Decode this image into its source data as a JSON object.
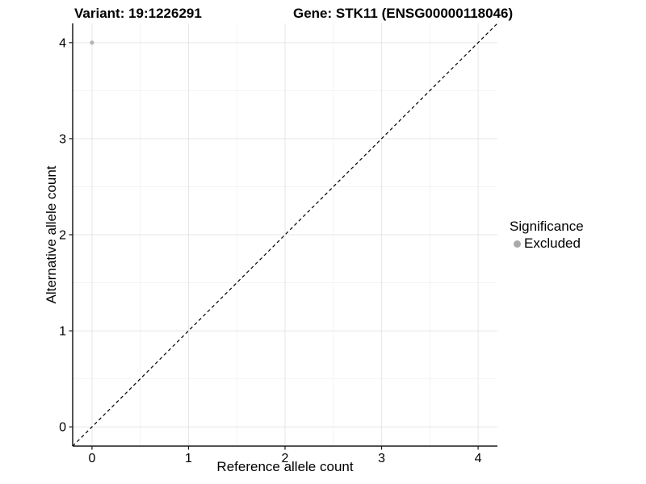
{
  "header": {
    "variant_title": "Variant: 19:1226291",
    "gene_title": "Gene: STK11 (ENSG00000118046)"
  },
  "legend": {
    "title": "Significance",
    "items": [
      {
        "label": "Excluded",
        "color": "#a9a9a9"
      }
    ]
  },
  "chart_data": {
    "type": "scatter",
    "title": "Variant: 19:1226291    Gene: STK11 (ENSG00000118046)",
    "xlabel": "Reference allele count",
    "ylabel": "Alternative allele count",
    "xlim": [
      -0.2,
      4.2
    ],
    "ylim": [
      -0.2,
      4.2
    ],
    "xticks": [
      0,
      1,
      2,
      3,
      4
    ],
    "yticks": [
      0,
      1,
      2,
      3,
      4
    ],
    "xticks_minor": [
      0.5,
      1.5,
      2.5,
      3.5
    ],
    "yticks_minor": [
      0.5,
      1.5,
      2.5,
      3.5
    ],
    "grid": "major+minor",
    "legend_position": "right",
    "series": [
      {
        "name": "Excluded",
        "color": "#b3b3b3",
        "points": [
          {
            "x": 0,
            "y": 4
          }
        ]
      }
    ],
    "reference_line": {
      "type": "abline",
      "intercept": 0,
      "slope": 1,
      "style": "dashed",
      "color": "#000000"
    }
  },
  "colors": {
    "background": "#ffffff",
    "grid_major": "#e6e6e6",
    "grid_minor": "#f3f3f3",
    "axis_line": "#1a1a1a",
    "tick_mark": "#1a1a1a",
    "text": "#000000"
  }
}
